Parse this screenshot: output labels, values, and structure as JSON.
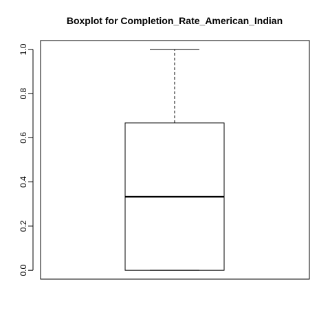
{
  "chart_data": {
    "type": "boxplot",
    "title": "Boxplot for  Completion_Rate_American_Indian",
    "xlabel": "",
    "ylabel": "",
    "ylim": [
      -0.04,
      1.04
    ],
    "y_ticks": [
      0.0,
      0.2,
      0.4,
      0.6,
      0.8,
      1.0
    ],
    "y_tick_labels": [
      "0.0",
      "0.2",
      "0.4",
      "0.6",
      "0.8",
      "1.0"
    ],
    "grid": false,
    "box": {
      "whisker_low": 0.0,
      "q1": 0.0,
      "median": 0.333,
      "q3": 0.667,
      "whisker_high": 1.0
    }
  }
}
